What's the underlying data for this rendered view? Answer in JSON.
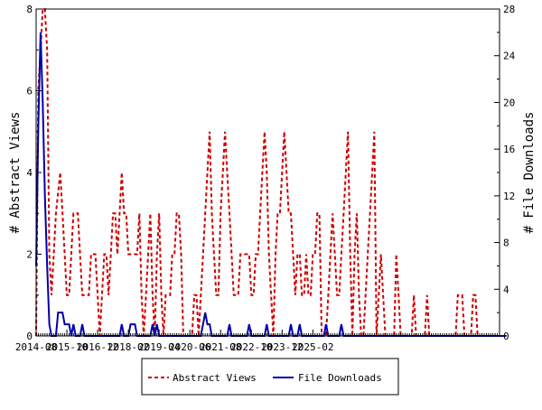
{
  "chart_data": {
    "type": "line",
    "title": "",
    "ylabel_left": "# Abstract Views",
    "ylabel_right": "# File Downloads",
    "y_left_range": [
      0,
      8
    ],
    "y_left_ticks": [
      "0",
      "2",
      "4",
      "6",
      "8"
    ],
    "y_right_range": [
      0,
      28
    ],
    "y_right_ticks": [
      "0",
      "4",
      "8",
      "12",
      "16",
      "20",
      "24",
      "28"
    ],
    "x_tick_labels": [
      "2014-08",
      "2015-10",
      "2016-12",
      "2018-02",
      "2019-04",
      "2020-06",
      "2021-08",
      "2022-10",
      "2023-12",
      "2025-02"
    ],
    "grid": false,
    "legend_position": "bottom",
    "series": [
      {
        "name": "Abstract Views",
        "color": "#cc0000",
        "axis": "left",
        "style": "dashed",
        "values": [
          0,
          6,
          7,
          8,
          8,
          7,
          2,
          1,
          2,
          3,
          3.5,
          4,
          3,
          2,
          1,
          1,
          2,
          3,
          3,
          3,
          2,
          1,
          1,
          1,
          1,
          2,
          2,
          2,
          1,
          0,
          1,
          2,
          2,
          1,
          2,
          3,
          3,
          2,
          3,
          4,
          3,
          3,
          2,
          2,
          2,
          2,
          2,
          3,
          1,
          0,
          1,
          2,
          3,
          1,
          0,
          2,
          3,
          1,
          0,
          1,
          1,
          1,
          2,
          2,
          3,
          3,
          2,
          0,
          0,
          0,
          0,
          0,
          1,
          1,
          0,
          1,
          2,
          3,
          4,
          5,
          3,
          2,
          1,
          1,
          3,
          4,
          5,
          4,
          3,
          2,
          1,
          1,
          1,
          2,
          2,
          2,
          2,
          2,
          1,
          1,
          2,
          2,
          3,
          4,
          5,
          4,
          2,
          1,
          0,
          2,
          3,
          3,
          4,
          5,
          4,
          3,
          3,
          2,
          1,
          2,
          2,
          1,
          1,
          2,
          1,
          1,
          2,
          2,
          3,
          3,
          0,
          0,
          0,
          1,
          2,
          3,
          2,
          1,
          1,
          2,
          3,
          4,
          5,
          2,
          0,
          2,
          3,
          1,
          0,
          0,
          1,
          2,
          3,
          4,
          5,
          0,
          1,
          2,
          1,
          0,
          0,
          0,
          0,
          0,
          2,
          1,
          0,
          0,
          0,
          0,
          0,
          0,
          1,
          0,
          0,
          0,
          0,
          0,
          1,
          0,
          0,
          0,
          0,
          0,
          0,
          0,
          0,
          0,
          0,
          0,
          0,
          0,
          1,
          1,
          1,
          0,
          0,
          0,
          0,
          1,
          1,
          0,
          0,
          0,
          0,
          0,
          0,
          0,
          0,
          0,
          0,
          0
        ]
      },
      {
        "name": "File Downloads",
        "color": "#0000aa",
        "axis": "right",
        "style": "solid",
        "values": [
          6,
          18,
          26,
          20,
          12,
          6,
          1,
          0,
          0,
          0,
          2,
          2,
          2,
          1,
          1,
          1,
          0,
          1,
          0,
          0,
          0,
          1,
          0,
          0,
          0,
          0,
          0,
          0,
          0,
          0,
          0,
          0,
          0,
          0,
          0,
          0,
          0,
          0,
          0,
          1,
          0,
          0,
          0,
          1,
          1,
          1,
          0,
          0,
          0,
          0,
          0,
          0,
          0,
          1,
          0,
          1,
          0,
          0,
          0,
          0,
          0,
          0,
          0,
          0,
          0,
          0,
          0,
          0,
          0,
          0,
          0,
          0,
          0,
          0,
          0,
          0,
          1,
          2,
          1,
          1,
          0,
          0,
          0,
          0,
          0,
          0,
          0,
          0,
          1,
          0,
          0,
          0,
          0,
          0,
          0,
          0,
          0,
          1,
          0,
          0,
          0,
          0,
          0,
          0,
          0,
          1,
          0,
          0,
          0,
          0,
          0,
          0,
          0,
          0,
          0,
          0,
          1,
          0,
          0,
          0,
          1,
          0,
          0,
          0,
          0,
          0,
          0,
          0,
          0,
          0,
          0,
          0,
          1,
          0,
          0,
          0,
          0,
          0,
          0,
          1,
          0,
          0,
          0,
          0,
          0,
          0,
          0,
          0,
          0,
          0,
          0,
          0,
          0,
          0,
          0,
          0,
          0,
          0,
          0,
          0,
          0,
          0,
          0,
          0,
          0,
          0,
          0,
          0,
          0,
          0,
          0,
          0,
          0,
          0,
          0,
          0,
          0,
          0,
          0,
          0,
          0,
          0,
          0,
          0,
          0,
          0,
          0,
          0,
          0,
          0,
          0,
          0,
          0,
          0,
          0,
          0,
          0,
          0,
          0,
          0,
          0,
          0,
          0,
          0,
          0,
          0,
          0,
          0,
          0,
          0,
          0,
          0,
          0,
          0,
          0
        ]
      }
    ]
  }
}
